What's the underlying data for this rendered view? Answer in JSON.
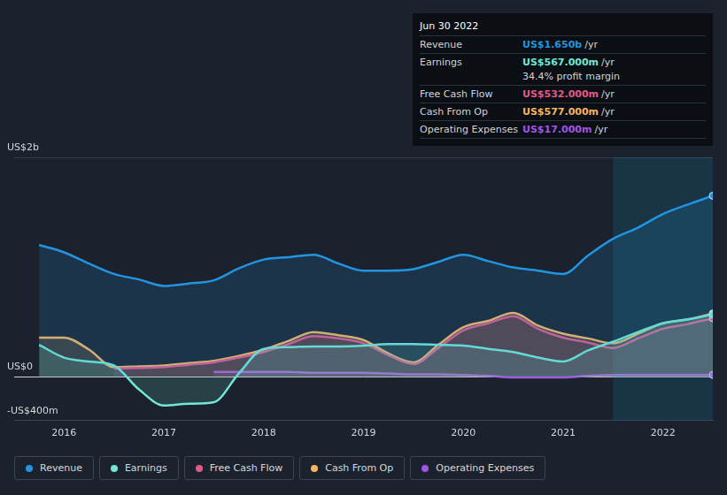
{
  "chart_data": {
    "type": "area",
    "x": [
      2015.75,
      2016,
      2016.25,
      2016.5,
      2016.75,
      2017,
      2017.25,
      2017.5,
      2017.75,
      2018,
      2018.25,
      2018.5,
      2018.75,
      2019,
      2019.25,
      2019.5,
      2019.75,
      2020,
      2020.25,
      2020.5,
      2020.75,
      2021,
      2021.25,
      2021.5,
      2021.75,
      2022,
      2022.25,
      2022.5
    ],
    "series": [
      {
        "name": "Revenue",
        "color": "#2394df",
        "values": [
          1200,
          1134,
          1032,
          937,
          887,
          828,
          850,
          879,
          988,
          1068,
          1090,
          1112,
          1032,
          967,
          967,
          981,
          1047,
          1112,
          1054,
          996,
          967,
          937,
          1105,
          1257,
          1359,
          1483,
          1570,
          1650
        ]
      },
      {
        "name": "Earnings",
        "color": "#71e7d6",
        "values": [
          291,
          174,
          138,
          102,
          -116,
          -262,
          -247,
          -233,
          29,
          254,
          269,
          276,
          276,
          283,
          298,
          298,
          291,
          283,
          254,
          225,
          174,
          138,
          240,
          320,
          407,
          487,
          523,
          567
        ]
      },
      {
        "name": "Free Cash Flow",
        "color": "#e0598b",
        "values": [
          null,
          null,
          null,
          73,
          80,
          87,
          109,
          131,
          174,
          225,
          298,
          371,
          349,
          305,
          196,
          116,
          262,
          422,
          487,
          552,
          436,
          356,
          312,
          262,
          349,
          436,
          480,
          532
        ]
      },
      {
        "name": "Cash From Op",
        "color": "#f5b462",
        "values": [
          356,
          356,
          247,
          87,
          94,
          102,
          124,
          145,
          189,
          247,
          327,
          407,
          378,
          334,
          211,
          131,
          291,
          451,
          509,
          581,
          465,
          392,
          349,
          305,
          392,
          487,
          523,
          577
        ]
      },
      {
        "name": "Operating Expenses",
        "color": "#a155e8",
        "values": [
          null,
          null,
          null,
          null,
          null,
          null,
          null,
          44,
          44,
          44,
          44,
          36,
          36,
          36,
          29,
          22,
          22,
          15,
          7,
          -7,
          -7,
          -7,
          7,
          15,
          15,
          15,
          15,
          17
        ]
      }
    ],
    "xlim": [
      2015.5,
      2022.5
    ],
    "xticks": [
      2016,
      2017,
      2018,
      2019,
      2020,
      2021,
      2022
    ],
    "ylim": [
      -400,
      2000
    ],
    "yticks": [
      {
        "value": -400,
        "label": "-US$400m"
      },
      {
        "value": 0,
        "label": "US$0"
      },
      {
        "value": 2000,
        "label": "US$2b"
      }
    ],
    "grid": "y",
    "legend": "bottom left",
    "shaded_x": [
      2021.5,
      2022.5
    ],
    "info_box": {
      "date": "Jun 30 2022",
      "rows": [
        {
          "label": "Revenue",
          "value": "US$1.650b",
          "unit": "/yr"
        },
        {
          "label": "Earnings",
          "value": "US$567.000m",
          "unit": "/yr",
          "note": "34.4% profit margin"
        },
        {
          "label": "Free Cash Flow",
          "value": "US$532.000m",
          "unit": "/yr"
        },
        {
          "label": "Cash From Op",
          "value": "US$577.000m",
          "unit": "/yr"
        },
        {
          "label": "Operating Expenses",
          "value": "US$17.000m",
          "unit": "/yr"
        }
      ]
    }
  }
}
